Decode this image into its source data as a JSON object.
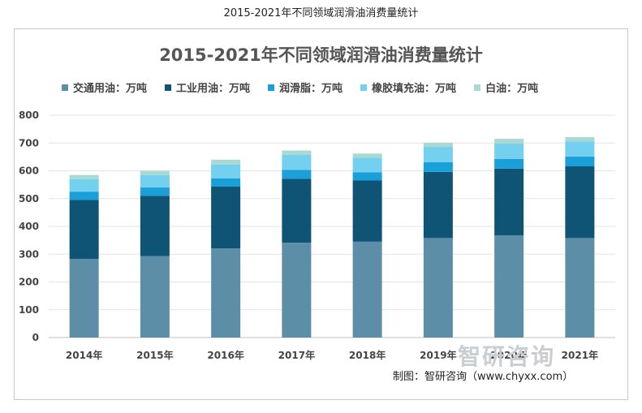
{
  "caption": "2015-2021年不同领域润滑油消费量统计",
  "watermark": "智研咨询",
  "source": "制图：智研咨询（www.chyxx.com）",
  "chart_data": {
    "type": "bar",
    "stacked": true,
    "title": "2015-2021年不同领域润滑油消费量统计",
    "categories": [
      "2014年",
      "2015年",
      "2016年",
      "2017年",
      "2018年",
      "2019年",
      "2020年",
      "2021年"
    ],
    "ylim": [
      0,
      800
    ],
    "yticks": [
      0,
      100,
      200,
      300,
      400,
      500,
      600,
      700,
      800
    ],
    "grid": true,
    "legend_position": "top",
    "series": [
      {
        "name": "交通用油：万吨",
        "color": "#5d8ea8",
        "values": [
          283,
          293,
          321,
          341,
          345,
          358,
          368,
          358
        ]
      },
      {
        "name": "工业用油：万吨",
        "color": "#0f5375",
        "values": [
          212,
          217,
          222,
          230,
          220,
          238,
          240,
          258
        ]
      },
      {
        "name": "润滑脂：万吨",
        "color": "#1a9fd8",
        "values": [
          30,
          30,
          30,
          32,
          30,
          35,
          35,
          35
        ]
      },
      {
        "name": "橡胶填充油：万吨",
        "color": "#73d0ee",
        "values": [
          45,
          45,
          50,
          55,
          52,
          55,
          55,
          55
        ]
      },
      {
        "name": "白油：万吨",
        "color": "#a9d9d0",
        "values": [
          15,
          15,
          17,
          15,
          15,
          15,
          17,
          15
        ]
      }
    ]
  }
}
